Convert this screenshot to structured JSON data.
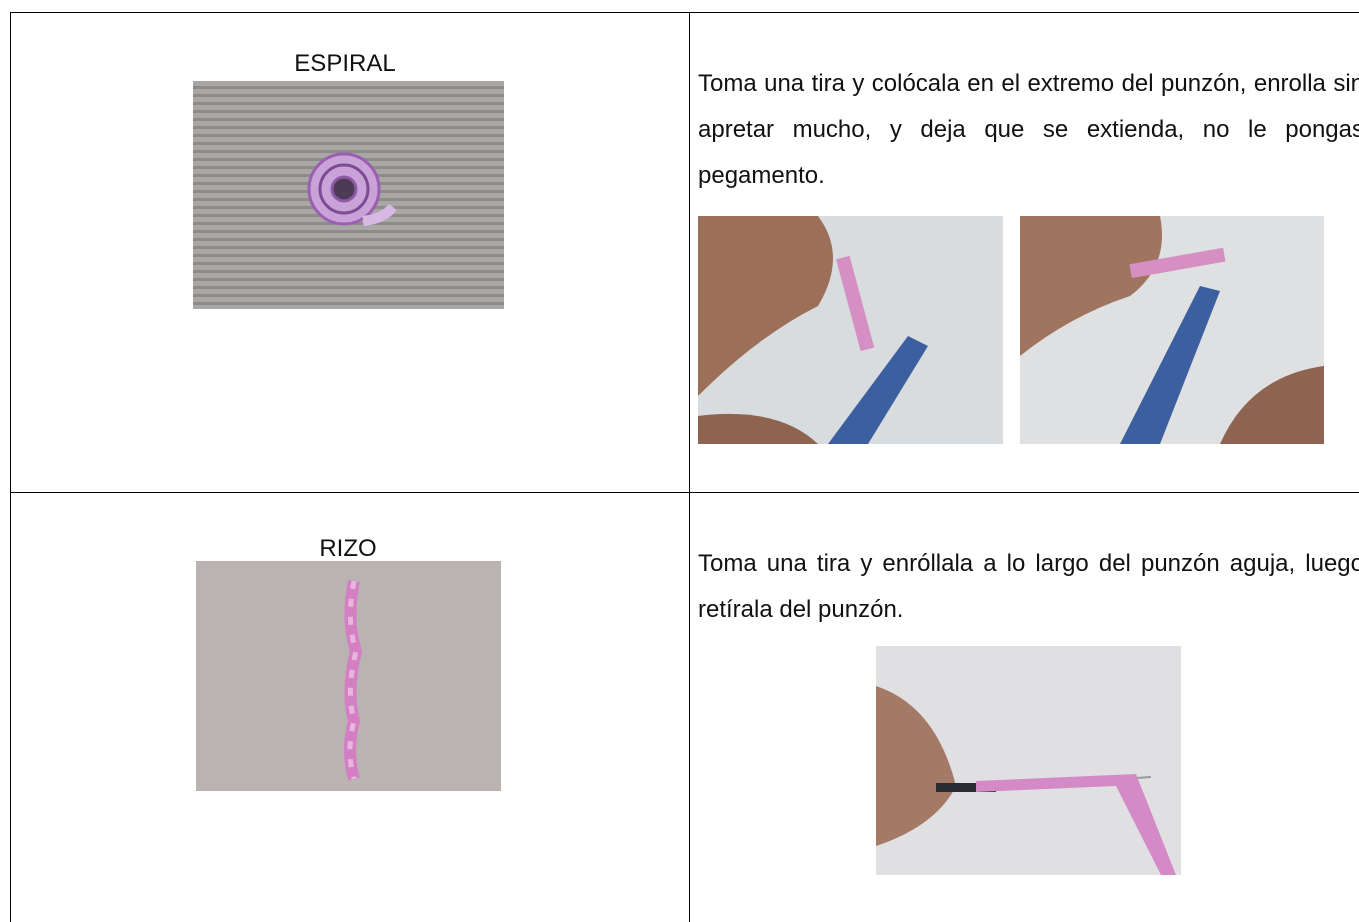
{
  "table": {
    "rows": [
      {
        "left": {
          "title": "ESPIRAL"
        },
        "right": {
          "text": "Toma una tira y colócala en el extremo del punzón, enrolla sin apretar mucho, y deja que se extienda, no le pongas pegamento."
        }
      },
      {
        "left": {
          "title": "RIZO"
        },
        "right": {
          "text": "Toma una tira y enróllala a lo largo del punzón aguja, luego retírala del punzón."
        }
      }
    ]
  }
}
